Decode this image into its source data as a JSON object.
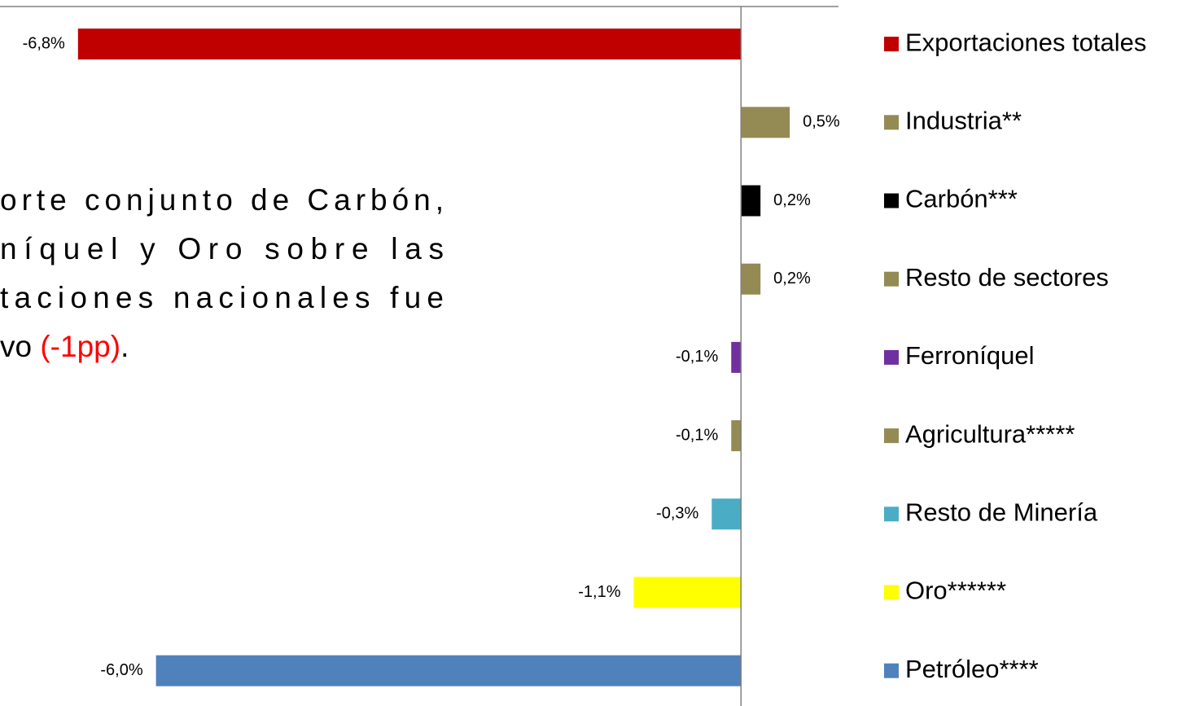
{
  "chart_data": {
    "type": "barh",
    "categories": [
      "Exportaciones totales",
      "Industria**",
      "Carbón***",
      "Resto de sectores",
      "Ferroníquel",
      "Agricultura*****",
      "Resto de Minería",
      "Oro******",
      "Petróleo****"
    ],
    "values": [
      -6.8,
      0.5,
      0.2,
      0.2,
      -0.1,
      -0.1,
      -0.3,
      -1.1,
      -6.0
    ],
    "value_labels": [
      "-6,8%",
      "0,5%",
      "0,2%",
      "0,2%",
      "-0,1%",
      "-0,1%",
      "-0,3%",
      "-1,1%",
      "-6,0%"
    ],
    "colors": [
      "#c00000",
      "#948a54",
      "#000000",
      "#948a54",
      "#7030a0",
      "#948a54",
      "#4bacc6",
      "#ffff00",
      "#4f81bd"
    ],
    "xlim": [
      -7.6,
      1.0
    ],
    "annotation": {
      "lines": [
        "orte conjunto de Carbón,",
        "níquel y Oro sobre las",
        "taciones nacionales fue"
      ],
      "last_line": [
        "vo ",
        "(-1pp)",
        "."
      ],
      "highlight_color": "#ff0000"
    }
  }
}
